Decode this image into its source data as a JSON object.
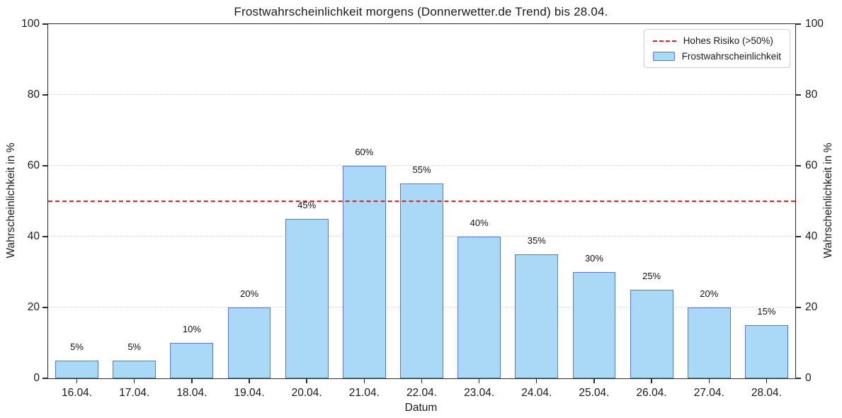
{
  "chart": {
    "title": "Frostwahrscheinlichkeit morgens (Donnerwetter.de Trend) bis 28.04.",
    "x_axis_label": "Datum",
    "y_axis_label_left": "Wahrscheinlichkeit in %",
    "y_axis_label_right": "Wahrscheinlichkeit in %",
    "legend": {
      "risk_label": "Hohes Risiko (>50%)",
      "frost_label": "Frostwahrscheinlichkeit"
    }
  },
  "chart_data": {
    "type": "bar",
    "title": "Frostwahrscheinlichkeit morgens (Donnerwetter.de Trend) bis 28.04.",
    "xlabel": "Datum",
    "ylabel": "Wahrscheinlichkeit in %",
    "ylabel_right": "Wahrscheinlichkeit in %",
    "categories": [
      "16.04.",
      "17.04.",
      "18.04.",
      "19.04.",
      "20.04.",
      "21.04.",
      "22.04.",
      "23.04.",
      "24.04.",
      "25.04.",
      "26.04.",
      "27.04.",
      "28.04."
    ],
    "values": [
      5,
      5,
      10,
      20,
      45,
      60,
      55,
      40,
      35,
      30,
      25,
      20,
      15
    ],
    "bar_labels": [
      "5%",
      "5%",
      "10%",
      "20%",
      "45%",
      "60%",
      "55%",
      "40%",
      "35%",
      "30%",
      "25%",
      "20%",
      "15%"
    ],
    "ylim": [
      0,
      100
    ],
    "yticks": [
      0,
      20,
      40,
      60,
      80,
      100
    ],
    "grid": "horizontal dotted",
    "legend_position": "upper right",
    "legend": [
      {
        "label": "Hohes Risiko (>50%)",
        "style": "dashed-line",
        "color": "#ef1c24"
      },
      {
        "label": "Frostwahrscheinlichkeit",
        "style": "bar",
        "fill": "#a9d9f7",
        "edge": "#5878c8"
      }
    ],
    "threshold_line": {
      "value": 50,
      "label": "Hohes Risiko (>50%)",
      "color": "#ef1c24",
      "style": "dashed"
    },
    "colors": {
      "bar_fill": "#a9d9f7",
      "bar_edge": "#5878c8",
      "threshold": "#ef1c24",
      "grid": "#dadada",
      "spine": "#2b2b2b"
    }
  }
}
